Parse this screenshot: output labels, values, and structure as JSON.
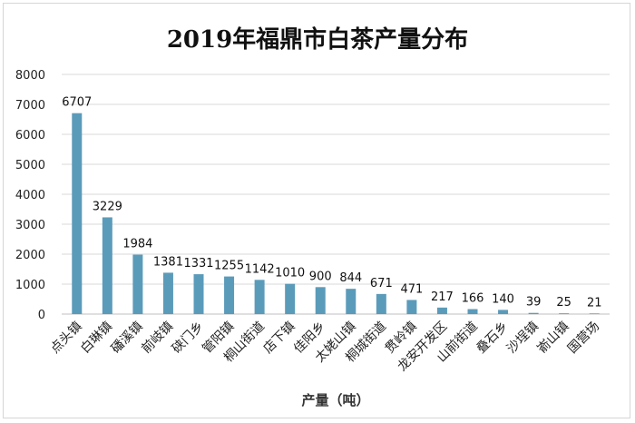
{
  "chart_data": {
    "type": "bar",
    "title": "2019年福鼎市白茶产量分布",
    "xlabel": "产量（吨）",
    "ylabel": "",
    "ylim": [
      0,
      8000
    ],
    "yticks": [
      0,
      1000,
      2000,
      3000,
      4000,
      5000,
      6000,
      7000,
      8000
    ],
    "grid": true,
    "bar_color": "#5b9bba",
    "categories": [
      "点头镇",
      "白琳镇",
      "磻溪镇",
      "前岐镇",
      "硖门乡",
      "管阳镇",
      "桐山街道",
      "店下镇",
      "佳阳乡",
      "太姥山镇",
      "桐城街道",
      "贯岭镇",
      "龙安开发区",
      "山前街道",
      "叠石乡",
      "沙埕镇",
      "嵛山镇",
      "国营场"
    ],
    "values": [
      6707,
      3229,
      1984,
      1381,
      1331,
      1255,
      1142,
      1010,
      900,
      844,
      671,
      471,
      217,
      166,
      140,
      39,
      25,
      21
    ]
  }
}
